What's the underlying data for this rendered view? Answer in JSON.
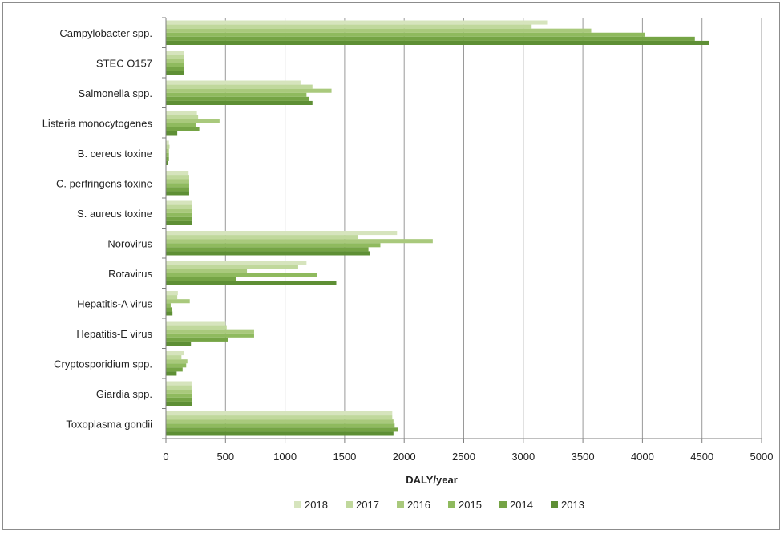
{
  "chart_data": {
    "type": "bar",
    "orientation": "horizontal",
    "title": "",
    "xlabel": "DALY/year",
    "ylabel": "",
    "xlim": [
      0,
      5000
    ],
    "xticks": [
      0,
      500,
      1000,
      1500,
      2000,
      2500,
      3000,
      3500,
      4000,
      4500,
      5000
    ],
    "grid": "vertical",
    "legend_position": "bottom",
    "categories": [
      "Campylobacter spp.",
      "STEC O157",
      "Salmonella spp.",
      "Listeria monocytogenes",
      "B. cereus toxine",
      "C. perfringens toxine",
      "S. aureus toxine",
      "Norovirus",
      "Rotavirus",
      "Hepatitis-A virus",
      "Hepatitis-E virus",
      "Cryptosporidium spp.",
      "Giardia spp.",
      "Toxoplasma gondii"
    ],
    "series": [
      {
        "name": "2018",
        "color": "#d6e4bd",
        "values": [
          3200,
          150,
          1130,
          260,
          25,
          190,
          220,
          1940,
          1180,
          100,
          500,
          150,
          215,
          1900
        ]
      },
      {
        "name": "2017",
        "color": "#c0d89c",
        "values": [
          3070,
          150,
          1230,
          270,
          30,
          195,
          220,
          1610,
          1110,
          95,
          510,
          130,
          215,
          1900
        ]
      },
      {
        "name": "2016",
        "color": "#a9c97c",
        "values": [
          3570,
          150,
          1390,
          450,
          25,
          195,
          220,
          2240,
          680,
          200,
          740,
          180,
          220,
          1910
        ]
      },
      {
        "name": "2015",
        "color": "#8fba5e",
        "values": [
          4020,
          150,
          1180,
          250,
          25,
          195,
          220,
          1800,
          1270,
          40,
          740,
          170,
          220,
          1920
        ]
      },
      {
        "name": "2014",
        "color": "#75a445",
        "values": [
          4440,
          150,
          1200,
          280,
          25,
          195,
          220,
          1700,
          590,
          50,
          520,
          140,
          220,
          1950
        ]
      },
      {
        "name": "2013",
        "color": "#5e8f35",
        "values": [
          4560,
          150,
          1230,
          95,
          20,
          195,
          220,
          1710,
          1430,
          55,
          210,
          90,
          220,
          1910
        ]
      }
    ]
  }
}
